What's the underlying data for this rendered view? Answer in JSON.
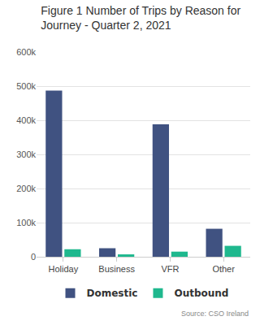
{
  "chart_data": {
    "type": "bar",
    "title": "Figure 1 Number of Trips by Reason for Journey - Quarter 2, 2021",
    "source": "Source: CSO Ireland",
    "categories": [
      "Holiday",
      "Business",
      "VFR",
      "Other"
    ],
    "series": [
      {
        "name": "Domestic",
        "color": "#405281",
        "values": [
          487000,
          25000,
          388000,
          82000
        ]
      },
      {
        "name": "Outbound",
        "color": "#1fb88e",
        "values": [
          22000,
          7000,
          15000,
          32000
        ]
      }
    ],
    "ylim": [
      0,
      600000
    ],
    "yticks": [
      0,
      {
        "value": 100000,
        "label": "100k"
      },
      {
        "value": 200000,
        "label": "200k"
      },
      {
        "value": 300000,
        "label": "300k"
      },
      {
        "value": 400000,
        "label": "400k"
      },
      {
        "value": 500000,
        "label": "500k"
      },
      {
        "value": 600000,
        "label": "600k"
      }
    ],
    "grid": true,
    "legend": "bottom"
  }
}
